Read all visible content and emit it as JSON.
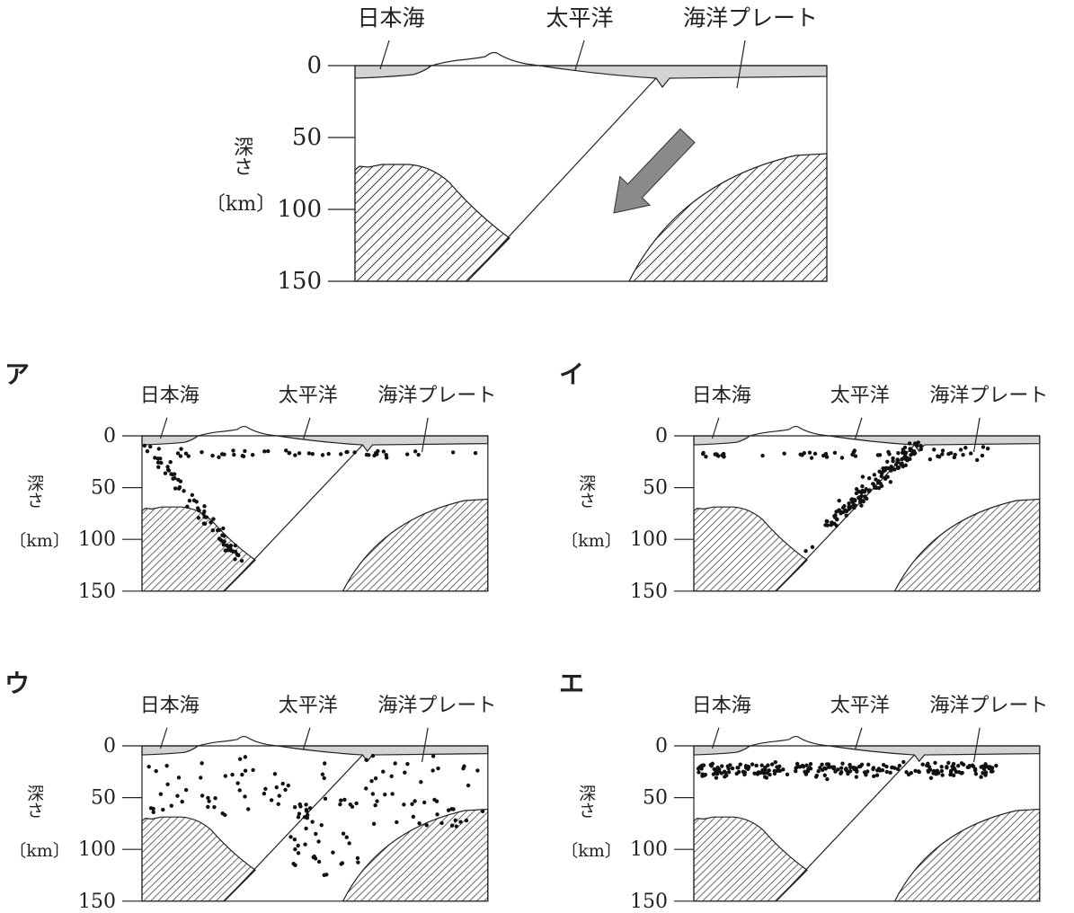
{
  "figure": {
    "labels": [
      "日本海",
      "太平洋",
      "海洋プレート"
    ],
    "axis_title": "深さ",
    "axis_unit": "〔km〕",
    "ticks": [
      0,
      50,
      100,
      150
    ]
  },
  "options": [
    {
      "letter": "ア",
      "labels": [
        "日本海",
        "太平洋",
        "海洋プレート"
      ],
      "axis_title": "深さ",
      "axis_unit": "〔km〕",
      "ticks": [
        0,
        50,
        100,
        150
      ]
    },
    {
      "letter": "イ",
      "labels": [
        "日本海",
        "太平洋",
        "海洋プレート"
      ],
      "axis_title": "深さ",
      "axis_unit": "〔km〕",
      "ticks": [
        0,
        50,
        100,
        150
      ]
    },
    {
      "letter": "ウ",
      "labels": [
        "日本海",
        "太平洋",
        "海洋プレート"
      ],
      "axis_title": "深さ",
      "axis_unit": "〔km〕",
      "ticks": [
        0,
        50,
        100,
        150
      ]
    },
    {
      "letter": "エ",
      "labels": [
        "日本海",
        "太平洋",
        "海洋プレート"
      ],
      "axis_title": "深さ",
      "axis_unit": "〔km〕",
      "ticks": [
        0,
        50,
        100,
        150
      ]
    }
  ]
}
